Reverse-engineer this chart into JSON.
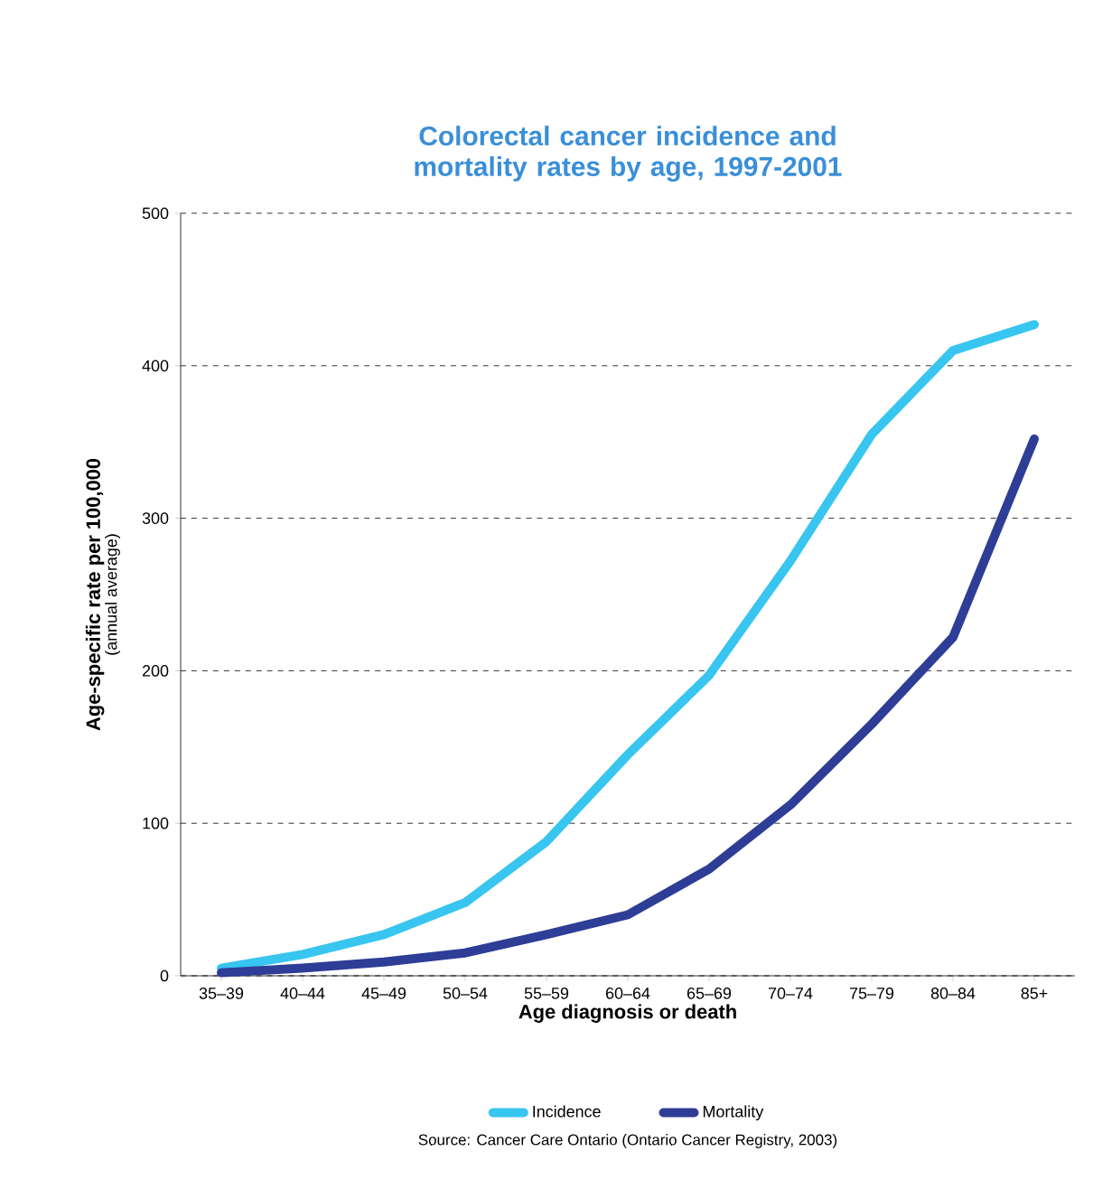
{
  "chart_data": {
    "type": "line",
    "title": "Colorectal cancer incidence and mortality rates by age, 1997-2001",
    "xlabel": "Age diagnosis or death",
    "ylabel": "Age-specific rate per 100,000",
    "categories": [
      "35–39",
      "40–44",
      "45–49",
      "50–54",
      "55–59",
      "60–64",
      "65–69",
      "70–74",
      "75–79",
      "80–84",
      "85+"
    ],
    "series": [
      {
        "name": "Incidence",
        "color": "#38c5f0",
        "values": [
          5,
          14,
          27,
          48,
          88,
          145,
          197,
          272,
          355,
          410,
          427
        ]
      },
      {
        "name": "Mortality",
        "color": "#2e3d96",
        "values": [
          2,
          5,
          9,
          15,
          27,
          40,
          70,
          112,
          165,
          222,
          352
        ]
      }
    ],
    "ylim": [
      0,
      500
    ],
    "yticks": [
      0,
      100,
      200,
      300,
      400,
      500
    ],
    "grid": "y",
    "legend": "bottom",
    "marker": "none",
    "line_style": "solid",
    "annotations": [
      "(annual average)",
      "Source: Cancer Care Ontario (Ontario Cancer Registry, 2003)"
    ]
  }
}
